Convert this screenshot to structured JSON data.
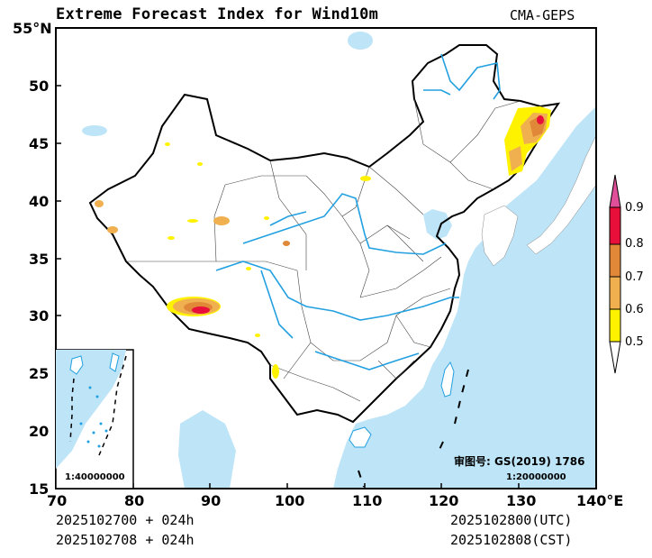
{
  "header": {
    "title": "Extreme Forecast Index for Wind10m",
    "model": "CMA-GEPS"
  },
  "map": {
    "lat_labels": [
      "55°N",
      "50",
      "45",
      "40",
      "35",
      "30",
      "25",
      "20",
      "15"
    ],
    "lon_labels": [
      "70",
      "80",
      "90",
      "100",
      "110",
      "120",
      "130",
      "140°E"
    ],
    "lat_range": [
      15,
      55
    ],
    "lon_range": [
      70,
      140
    ],
    "inset_scale": "1:40000000",
    "main_scale": "1:20000000",
    "approval_number": "审图号: GS(2019) 1786"
  },
  "legend": {
    "levels": [
      "0.5",
      "0.6",
      "0.7",
      "0.8",
      "0.9"
    ],
    "colors": [
      "#ffffff",
      "#fff200",
      "#f0b050",
      "#e08838",
      "#e8103a",
      "#e0509a"
    ]
  },
  "footer": {
    "init_utc": "2025102700 + 024h",
    "init_cst": "2025102708 + 024h",
    "valid_utc": "2025102800(UTC)",
    "valid_cst": "2025102808(CST)"
  },
  "colors": {
    "ocean": "#bde4f7",
    "river": "#22a0e0",
    "border": "#000000",
    "province": "#555555"
  }
}
